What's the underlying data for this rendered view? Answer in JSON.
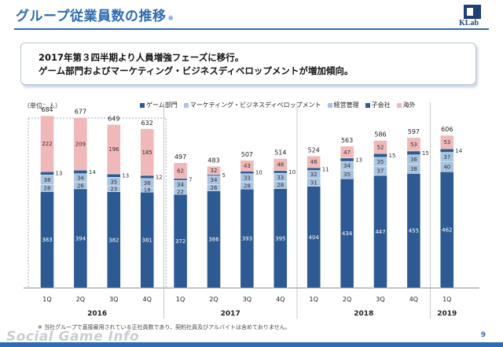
{
  "header": {
    "title": "グループ従業員数の推移",
    "title_mark": "※",
    "logo_text": "KLab"
  },
  "message": {
    "line1": "2017年第３四半期より人員増強フェーズに移行。",
    "line2": "ゲーム部門およびマーケティング・ビジネスディベロップメントが増加傾向。"
  },
  "footer": {
    "note": "※ 当社グループで直接雇用されている正社員数であり、契約社員及びアルバイトは含めておりません。",
    "page_number": "9",
    "watermark": "Social Game Info"
  },
  "chart_data": {
    "type": "bar",
    "stacked": true,
    "unit_label": "（単位：人）",
    "categories": [
      "1Q",
      "2Q",
      "3Q",
      "4Q",
      "1Q",
      "2Q",
      "3Q",
      "4Q",
      "1Q",
      "2Q",
      "3Q",
      "4Q",
      "1Q"
    ],
    "groups": [
      {
        "label": "2016",
        "start": 0,
        "end": 3
      },
      {
        "label": "2017",
        "start": 4,
        "end": 7
      },
      {
        "label": "2018",
        "start": 8,
        "end": 11
      },
      {
        "label": "2019",
        "start": 12,
        "end": 12
      }
    ],
    "series": [
      {
        "name": "ゲーム部門",
        "color": "#2d5a93",
        "values": [
          383,
          394,
          382,
          381,
          372,
          386,
          393,
          395,
          404,
          434,
          447,
          455,
          462
        ]
      },
      {
        "name": "マーケティング・ビジネスディベロップメント",
        "color": "#a9c3e0",
        "values": [
          28,
          26,
          23,
          18,
          22,
          26,
          28,
          28,
          31,
          35,
          37,
          38,
          40
        ]
      },
      {
        "name": "経営管理",
        "color": "#a9c3e0",
        "values": [
          38,
          34,
          35,
          36,
          34,
          34,
          33,
          33,
          32,
          34,
          35,
          36,
          37
        ]
      },
      {
        "name": "子会社",
        "color": "#2d5a93",
        "values": [
          13,
          14,
          13,
          12,
          7,
          5,
          10,
          10,
          11,
          13,
          15,
          15,
          14
        ]
      },
      {
        "name": "海外",
        "color": "#f0b8b8",
        "values": [
          222,
          209,
          196,
          185,
          62,
          32,
          43,
          48,
          46,
          47,
          52,
          53,
          53
        ]
      }
    ],
    "totals": [
      684,
      677,
      649,
      632,
      497,
      483,
      507,
      514,
      524,
      563,
      586,
      597,
      606
    ],
    "ylim": [
      0,
      700
    ],
    "highlight_range": [
      0,
      3
    ],
    "legend_position": "top"
  }
}
